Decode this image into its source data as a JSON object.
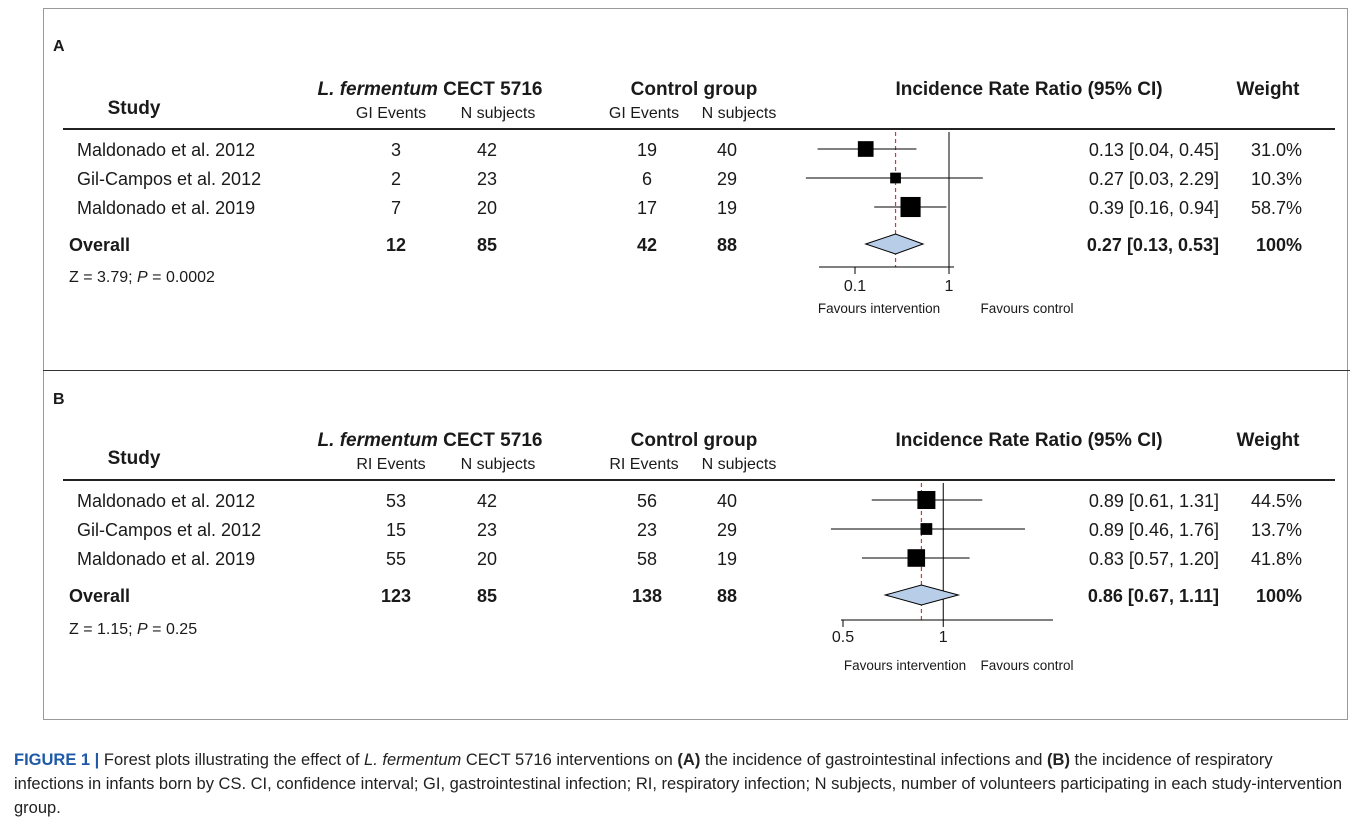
{
  "panels": [
    {
      "letter": "A",
      "headers": {
        "study": "Study",
        "intervention_italic": "L. fermentum",
        "intervention_rest": " CECT 5716",
        "control": "Control group",
        "effect": "Incidence Rate Ratio (95% CI)",
        "weight": "Weight",
        "events": "GI Events",
        "n": "N subjects"
      },
      "rows": [
        {
          "study": "Maldonado et al. 2012",
          "ie": "3",
          "in": "42",
          "ce": "19",
          "cn": "40",
          "ci_text": "0.13 [0.04, 0.45]",
          "weight": "31.0%"
        },
        {
          "study": "Gil-Campos et al. 2012",
          "ie": "2",
          "in": "23",
          "ce": "6",
          "cn": "29",
          "ci_text": "0.27 [0.03, 2.29]",
          "weight": "10.3%"
        },
        {
          "study": "Maldonado et al. 2019",
          "ie": "7",
          "in": "20",
          "ce": "17",
          "cn": "19",
          "ci_text": "0.39 [0.16, 0.94]",
          "weight": "58.7%"
        }
      ],
      "overall": {
        "label": "Overall",
        "ie": "12",
        "in": "85",
        "ce": "42",
        "cn": "88",
        "ci_text": "0.27 [0.13, 0.53]",
        "weight": "100%"
      },
      "stats_prefix": "Z = 3.79; ",
      "stats_p": "P",
      "stats_suffix": " = 0.0002",
      "favours_left": "Favours intervention",
      "favours_right": "Favours control"
    },
    {
      "letter": "B",
      "headers": {
        "study": "Study",
        "intervention_italic": "L. fermentum",
        "intervention_rest": " CECT 5716",
        "control": "Control group",
        "effect": "Incidence Rate Ratio (95% CI)",
        "weight": "Weight",
        "events": "RI Events",
        "n": "N subjects"
      },
      "rows": [
        {
          "study": "Maldonado et al. 2012",
          "ie": "53",
          "in": "42",
          "ce": "56",
          "cn": "40",
          "ci_text": "0.89 [0.61, 1.31]",
          "weight": "44.5%"
        },
        {
          "study": "Gil-Campos et al. 2012",
          "ie": "15",
          "in": "23",
          "ce": "23",
          "cn": "29",
          "ci_text": "0.89 [0.46, 1.76]",
          "weight": "13.7%"
        },
        {
          "study": "Maldonado et al. 2019",
          "ie": "55",
          "in": "20",
          "ce": "58",
          "cn": "19",
          "ci_text": "0.83 [0.57, 1.20]",
          "weight": "41.8%"
        }
      ],
      "overall": {
        "label": "Overall",
        "ie": "123",
        "in": "85",
        "ce": "138",
        "cn": "88",
        "ci_text": "0.86 [0.67, 1.11]",
        "weight": "100%"
      },
      "stats_prefix": "Z = 1.15; ",
      "stats_p": "P",
      "stats_suffix": " = 0.25",
      "favours_left": "Favours intervention",
      "favours_right": "Favours control"
    }
  ],
  "caption": {
    "figure_label": "FIGURE 1 |",
    "part1": " Forest plots illustrating the effect of ",
    "species": "L. fermentum",
    "part2": " CECT 5716 interventions on ",
    "a_ref": "(A)",
    "part3": " the incidence of gastrointestinal infections and ",
    "b_ref": "(B)",
    "part4": " the incidence of respiratory infections in infants born by CS. CI, confidence interval; GI, gastrointestinal infection; RI, respiratory infection; N subjects, number of volunteers participating in each study-intervention group."
  },
  "colors": {
    "diamond_fill": "#b7cde8",
    "reference_dashed": "#e03030",
    "marker": "#000000"
  },
  "chart_data": [
    {
      "type": "forest",
      "scale": "log",
      "xlabel": "",
      "ticks": [
        0.1,
        1
      ],
      "xlim": [
        0.03,
        2.3
      ],
      "reference_line": 1,
      "pooled_line": 0.27,
      "studies": [
        {
          "name": "Maldonado et al. 2012",
          "estimate": 0.13,
          "lower": 0.04,
          "upper": 0.45,
          "weight": 31.0
        },
        {
          "name": "Gil-Campos et al. 2012",
          "estimate": 0.27,
          "lower": 0.03,
          "upper": 2.29,
          "weight": 10.3
        },
        {
          "name": "Maldonado et al. 2019",
          "estimate": 0.39,
          "lower": 0.16,
          "upper": 0.94,
          "weight": 58.7
        }
      ],
      "overall": {
        "estimate": 0.27,
        "lower": 0.13,
        "upper": 0.53,
        "weight": 100
      }
    },
    {
      "type": "forest",
      "scale": "log",
      "xlabel": "",
      "ticks": [
        0.5,
        1
      ],
      "xlim": [
        0.45,
        1.8
      ],
      "reference_line": 1,
      "pooled_line": 0.86,
      "studies": [
        {
          "name": "Maldonado et al. 2012",
          "estimate": 0.89,
          "lower": 0.61,
          "upper": 1.31,
          "weight": 44.5
        },
        {
          "name": "Gil-Campos et al. 2012",
          "estimate": 0.89,
          "lower": 0.46,
          "upper": 1.76,
          "weight": 13.7
        },
        {
          "name": "Maldonado et al. 2019",
          "estimate": 0.83,
          "lower": 0.57,
          "upper": 1.2,
          "weight": 41.8
        }
      ],
      "overall": {
        "estimate": 0.86,
        "lower": 0.67,
        "upper": 1.11,
        "weight": 100
      }
    }
  ]
}
